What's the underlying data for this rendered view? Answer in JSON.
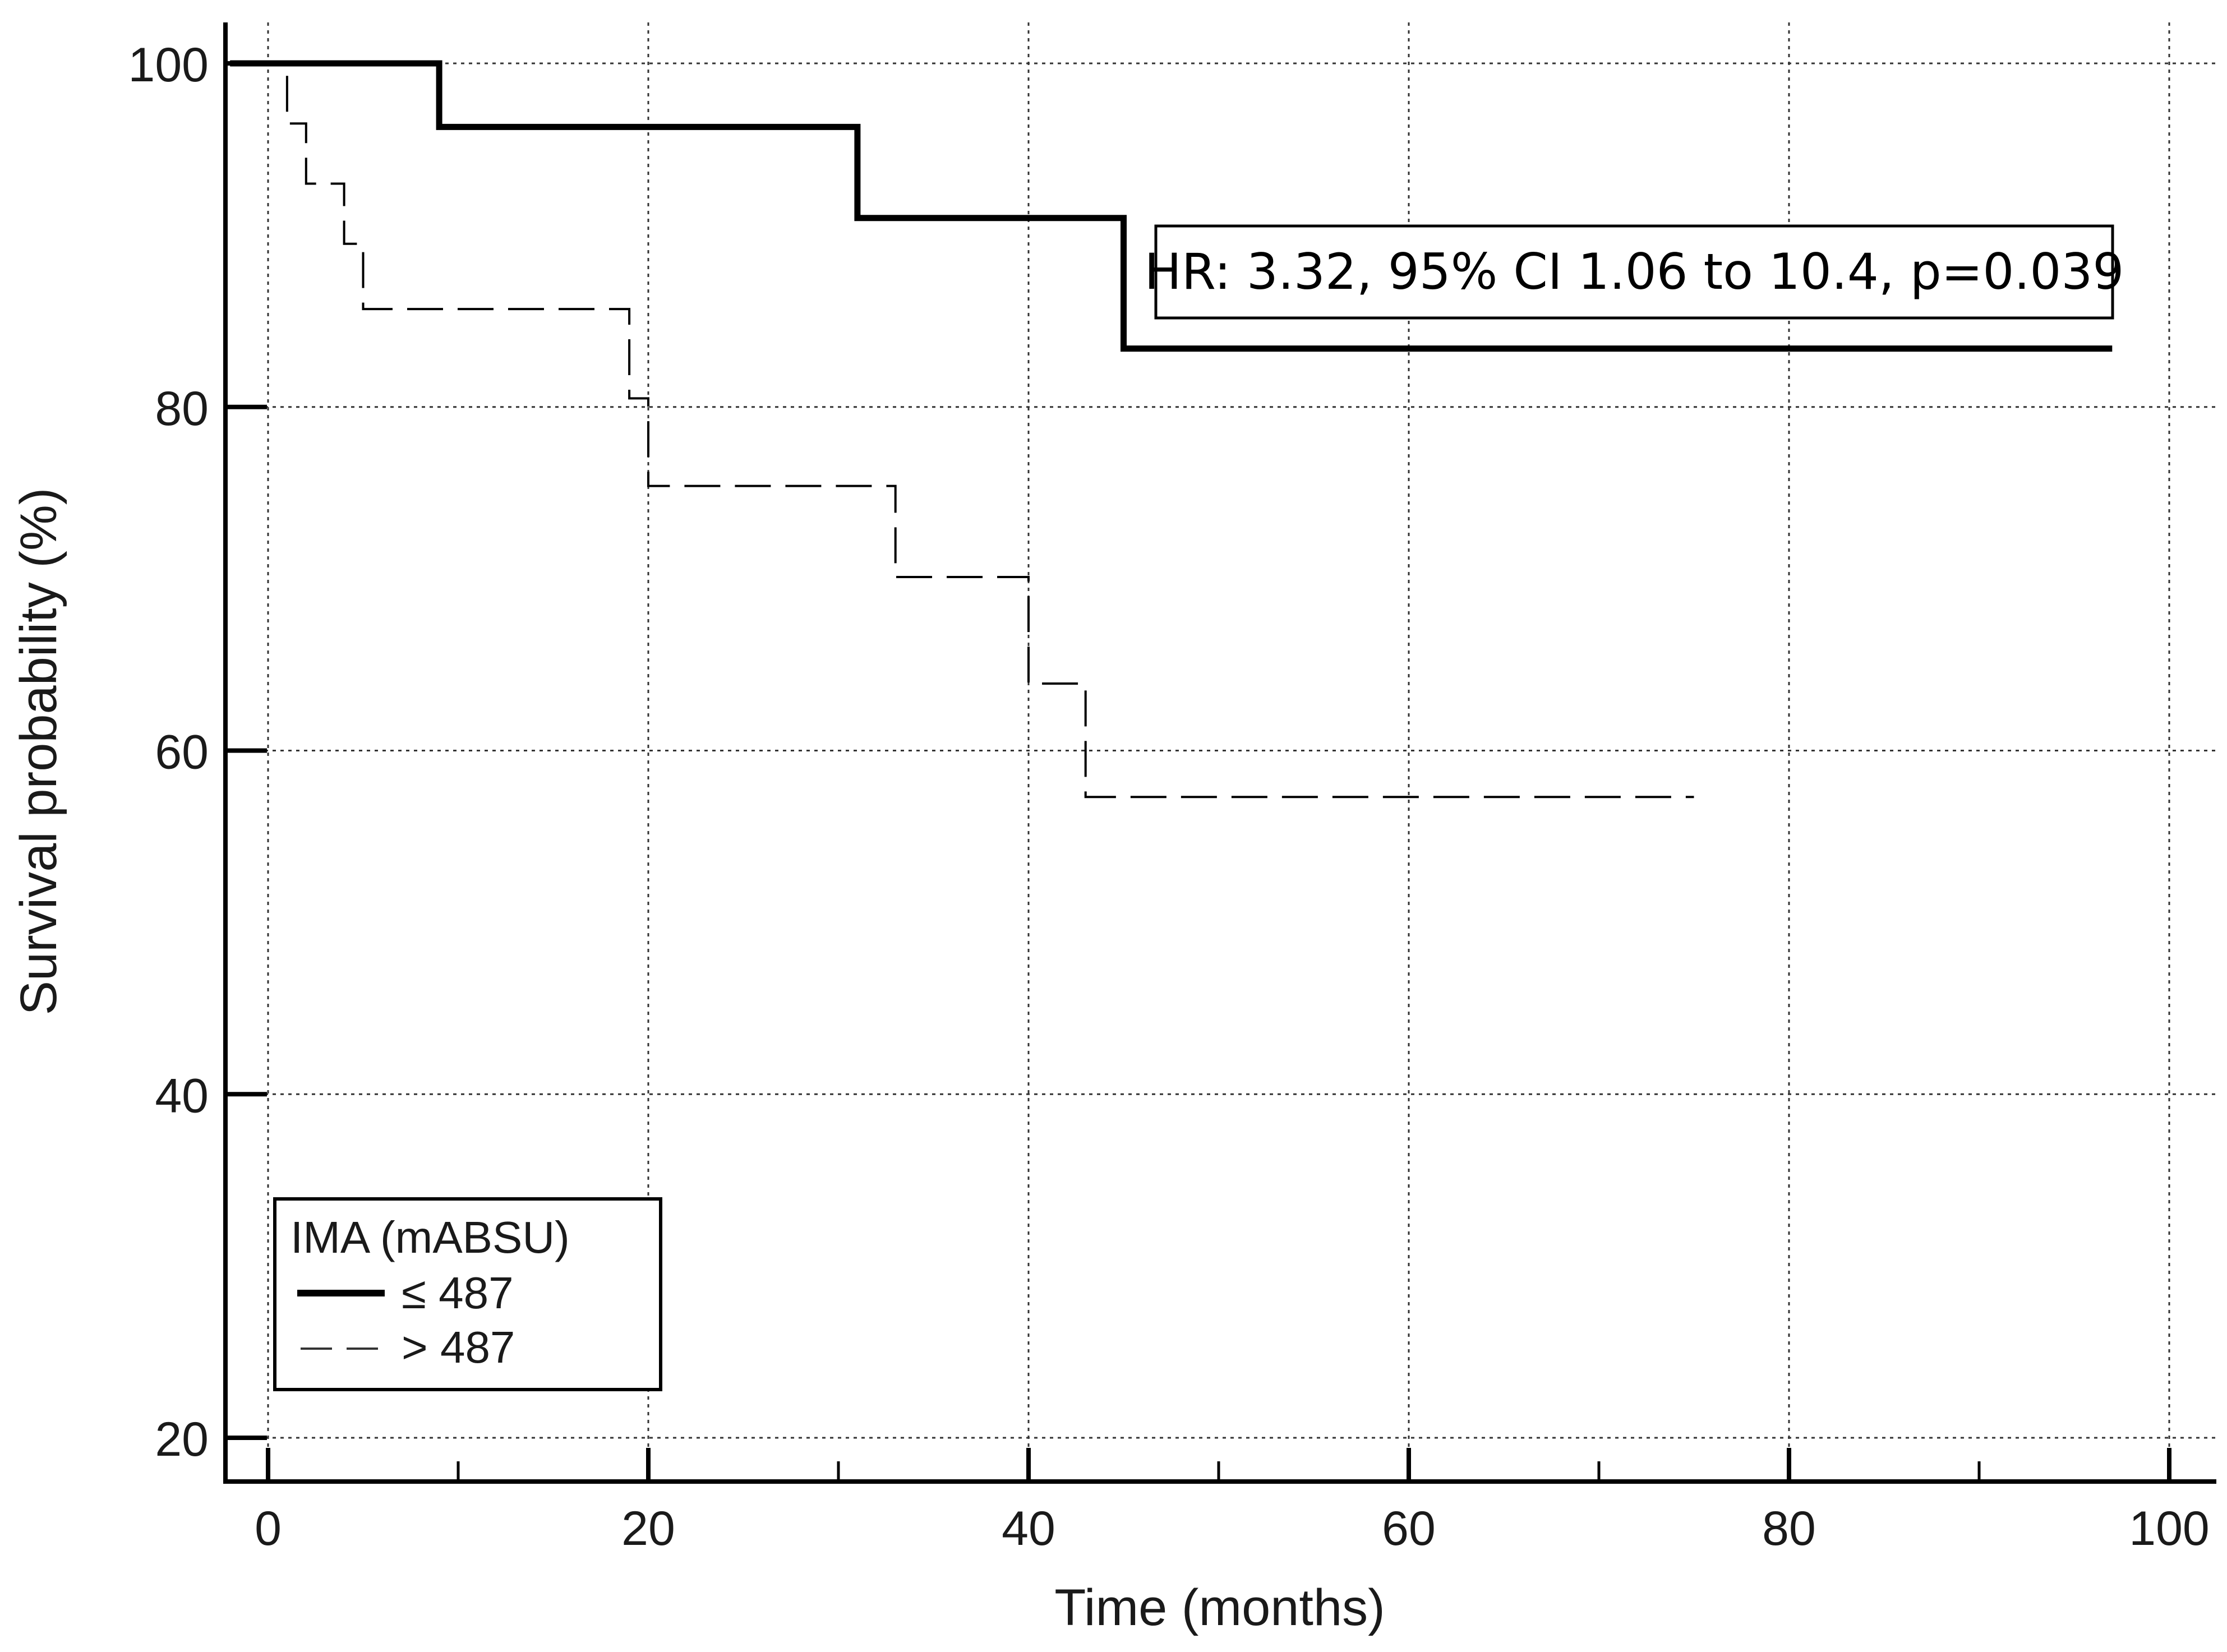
{
  "chart_data": {
    "type": "line",
    "subtype": "kaplan-meier step",
    "xlabel": "Time (months)",
    "ylabel": "Survival probability (%)",
    "xlim": [
      -4.5,
      102.5
    ],
    "ylim": [
      17.5,
      103.5
    ],
    "x_ticks": [
      0,
      20,
      40,
      60,
      80,
      100
    ],
    "y_ticks": [
      20,
      40,
      60,
      80,
      100
    ],
    "grid": true,
    "annotation": "HR: 3.32, 95% CI 1.06 to 10.4, p=0.039",
    "legend": {
      "title": "IMA (mABSU)",
      "position": "bottom-left"
    },
    "series": [
      {
        "name": "≤ 487",
        "style": "solid",
        "color": "#000000",
        "steps": [
          [
            -2,
            100
          ],
          [
            9,
            96.3
          ],
          [
            31,
            91
          ],
          [
            45,
            83.4
          ]
        ],
        "end_x": 97
      },
      {
        "name": "> 487",
        "style": "dashed",
        "color": "#000000",
        "steps": [
          [
            -1,
            100
          ],
          [
            1,
            96.5
          ],
          [
            2,
            93
          ],
          [
            4,
            89.5
          ],
          [
            5,
            85.7
          ],
          [
            19,
            80.5
          ],
          [
            20,
            75.4
          ],
          [
            33,
            70.1
          ],
          [
            40,
            63.9
          ],
          [
            43,
            57.3
          ]
        ],
        "end_x": 75
      }
    ]
  }
}
